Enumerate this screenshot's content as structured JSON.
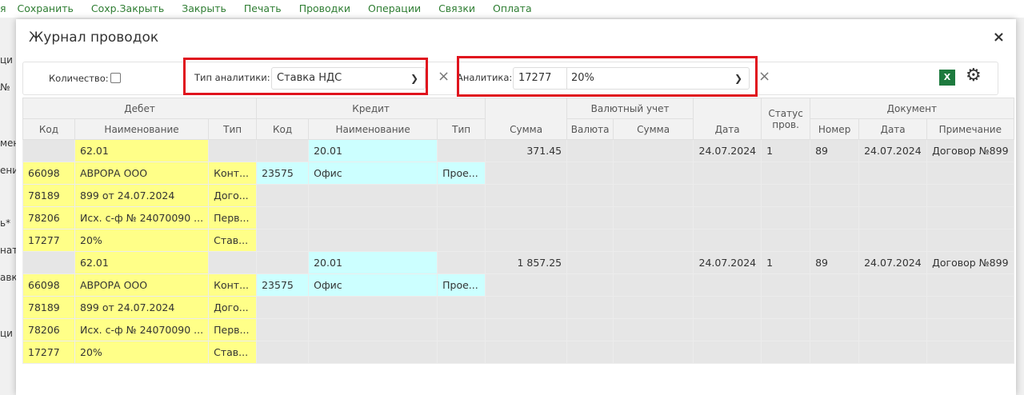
{
  "toolbar": [
    "я",
    "Сохранить",
    "Сохр.Закрыть",
    "Закрыть",
    "Печать",
    "Проводки",
    "Операции",
    "Связки",
    "Оплата"
  ],
  "background_fragments": [
    "ци",
    "№",
    "мен",
    "ени",
    "ь*",
    "нат",
    "авк",
    "ци"
  ],
  "modal": {
    "title": "Журнал проводок",
    "close": "×"
  },
  "filters": {
    "quantity_label": "Количество:",
    "analytics_type_label": "Тип аналитики:",
    "analytics_type_value": "Ставка НДС",
    "analytics_label": "Аналитика:",
    "analytics_code": "17277",
    "analytics_value": "20%",
    "clear": "×",
    "excel": "X"
  },
  "headers": {
    "debit": "Дебет",
    "credit": "Кредит",
    "currency": "Валютный учет",
    "document": "Документ",
    "sum": "Сумма",
    "date": "Дата",
    "status": "Статус пров.",
    "code": "Код",
    "name": "Наименование",
    "type": "Тип",
    "cur": "Валюта",
    "cur_sum": "Сумма",
    "number": "Номер",
    "doc_date": "Дата",
    "note": "Примечание"
  },
  "entries": [
    {
      "debit": "62.01",
      "credit": "20.01",
      "sum": "371.45",
      "date": "24.07.2024",
      "status": "1",
      "number": "89",
      "doc_date": "24.07.2024",
      "note": "Договор №899",
      "debit_analytics": [
        [
          "66098",
          "АВРОРА ООО",
          "Конт..."
        ],
        [
          "78189",
          "899 от 24.07.2024",
          "Дого..."
        ],
        [
          "78206",
          "Исх. с-ф № 24070090 ...",
          "Перв..."
        ],
        [
          "17277",
          "20%",
          "Став..."
        ]
      ],
      "credit_analytics": [
        [
          "23575",
          "Офис",
          "Прое..."
        ]
      ]
    },
    {
      "debit": "62.01",
      "credit": "20.01",
      "sum": "1 857.25",
      "date": "24.07.2024",
      "status": "1",
      "number": "89",
      "doc_date": "24.07.2024",
      "note": "Договор №899",
      "debit_analytics": [
        [
          "66098",
          "АВРОРА ООО",
          "Конт..."
        ],
        [
          "78189",
          "899 от 24.07.2024",
          "Дого..."
        ],
        [
          "78206",
          "Исх. с-ф № 24070090 ...",
          "Перв..."
        ],
        [
          "17277",
          "20%",
          "Став..."
        ]
      ],
      "credit_analytics": [
        [
          "23575",
          "Офис",
          "Прое..."
        ]
      ]
    }
  ]
}
